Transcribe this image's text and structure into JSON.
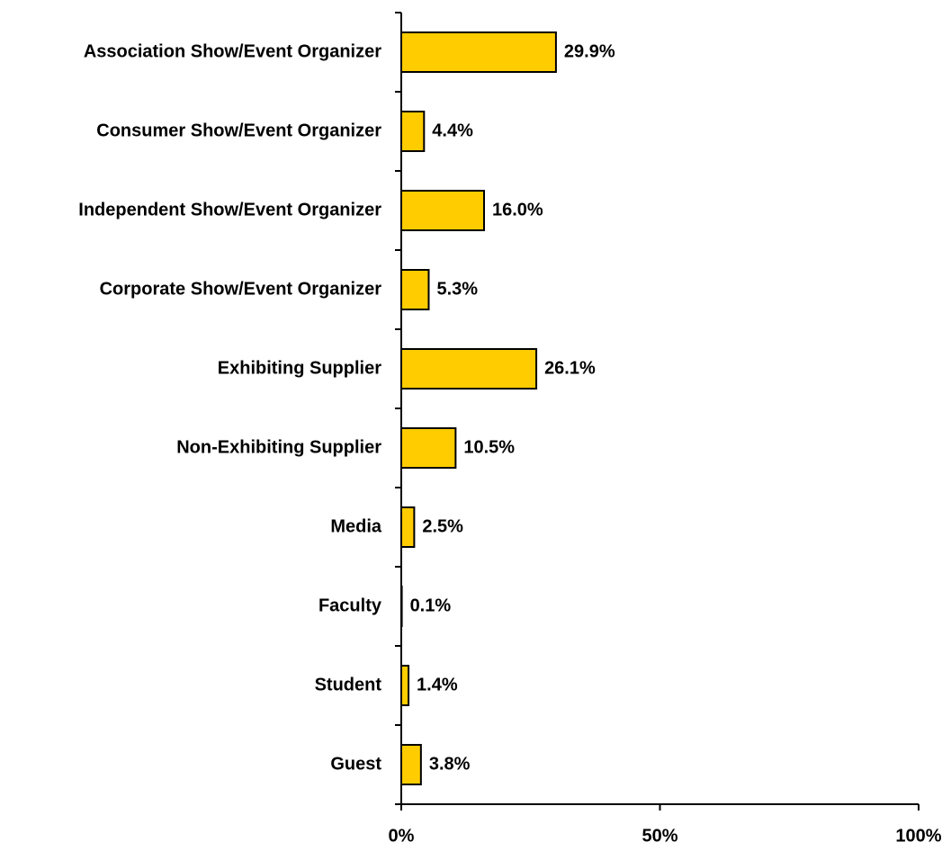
{
  "chart_data": {
    "type": "bar",
    "orientation": "horizontal",
    "categories": [
      "Association Show/Event Organizer",
      "Consumer Show/Event Organizer",
      "Independent Show/Event Organizer",
      "Corporate Show/Event Organizer",
      "Exhibiting Supplier",
      "Non-Exhibiting Supplier",
      "Media",
      "Faculty",
      "Student",
      "Guest"
    ],
    "values": [
      29.9,
      4.4,
      16.0,
      5.3,
      26.1,
      10.5,
      2.5,
      0.1,
      1.4,
      3.8
    ],
    "value_labels": [
      "29.9%",
      "4.4%",
      "16.0%",
      "5.3%",
      "26.1%",
      "10.5%",
      "2.5%",
      "0.1%",
      "1.4%",
      "3.8%"
    ],
    "color": "#ffcc00",
    "xlim": [
      0,
      100
    ],
    "xticks": [
      {
        "value": 0,
        "label": "0%"
      },
      {
        "value": 50,
        "label": "50%"
      },
      {
        "value": 100,
        "label": "100%"
      }
    ],
    "grid": false
  }
}
